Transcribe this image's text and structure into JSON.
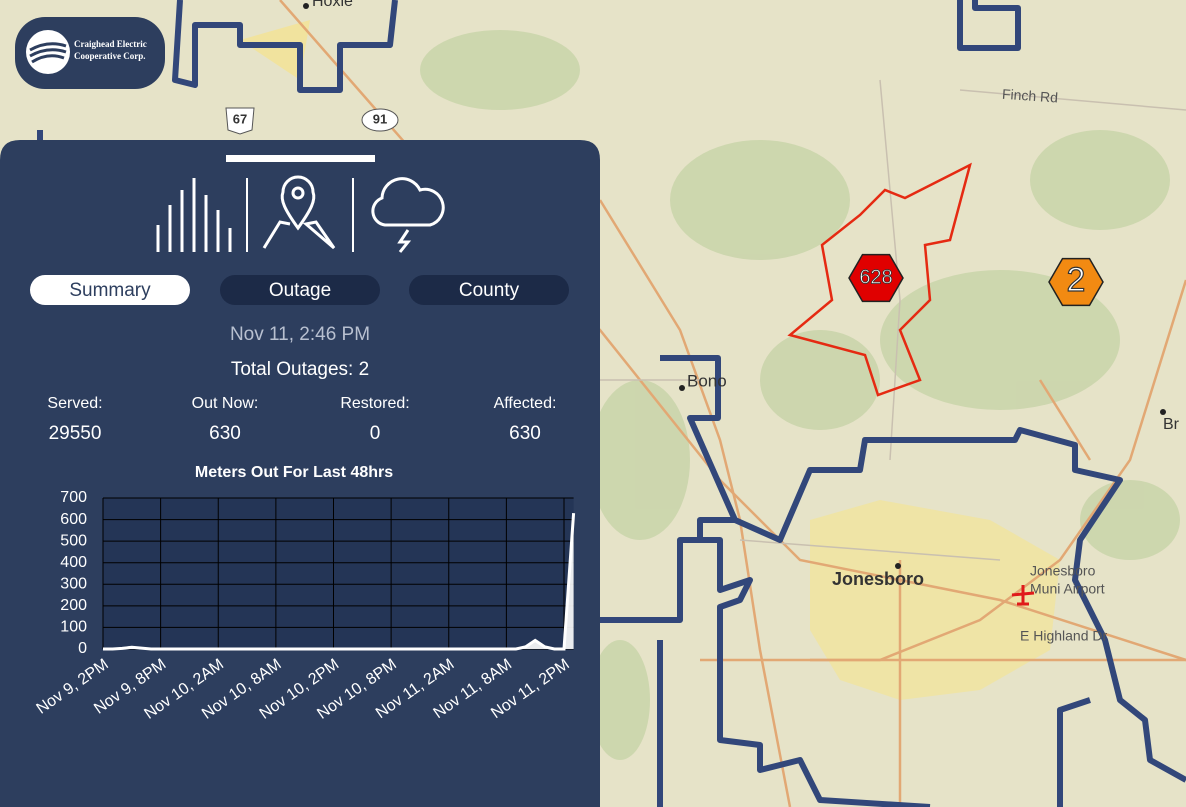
{
  "logo": {
    "text": [
      "Craighead Electric",
      "Cooperative Corp."
    ]
  },
  "map": {
    "places": [
      "Hoxie",
      "Bono",
      "Jonesboro",
      "Br"
    ],
    "roads": [
      "Finch Rd",
      "E Highland Dr"
    ],
    "shields": [
      "67",
      "91"
    ],
    "airport": [
      "Jonesboro",
      "Muni Airport"
    ],
    "clusters": [
      {
        "label": "628",
        "color": "#e00000"
      },
      {
        "label": "2",
        "color": "#f28a12"
      }
    ]
  },
  "panel": {
    "tabs": [
      "Summary",
      "Outage",
      "County"
    ],
    "timestamp": "Nov 11, 2:46 PM",
    "total": "Total Outages: 2",
    "stats": [
      {
        "label": "Served:",
        "value": 29550
      },
      {
        "label": "Out Now:",
        "value": 630
      },
      {
        "label": "Restored:",
        "value": 0
      },
      {
        "label": "Affected:",
        "value": 630
      }
    ]
  },
  "chart_data": {
    "type": "area",
    "title": "Meters Out For Last 48hrs",
    "categories": [
      "Nov 9, 2PM",
      null,
      null,
      null,
      null,
      null,
      "Nov 9, 8PM",
      null,
      null,
      null,
      null,
      null,
      "Nov 10, 2AM",
      null,
      null,
      null,
      null,
      null,
      "Nov 10, 8AM",
      null,
      null,
      null,
      null,
      null,
      "Nov 10, 2PM",
      null,
      null,
      null,
      null,
      null,
      "Nov 10, 8PM",
      null,
      null,
      null,
      null,
      null,
      "Nov 11, 2AM",
      null,
      null,
      null,
      null,
      null,
      "Nov 11, 8AM",
      null,
      null,
      null,
      null,
      null,
      "Nov 11, 2PM",
      null
    ],
    "values": [
      0,
      0,
      3,
      8,
      4,
      0,
      0,
      0,
      0,
      0,
      0,
      0,
      0,
      0,
      0,
      0,
      0,
      0,
      0,
      0,
      0,
      0,
      0,
      0,
      0,
      0,
      0,
      0,
      0,
      0,
      0,
      0,
      0,
      0,
      0,
      0,
      0,
      0,
      0,
      0,
      0,
      0,
      0,
      0,
      10,
      40,
      10,
      0,
      0,
      630
    ],
    "color": "#ffffff",
    "ylim": [
      0,
      700
    ],
    "yticks": [
      0,
      100,
      200,
      300,
      400,
      500,
      600,
      700
    ],
    "grid": true
  }
}
